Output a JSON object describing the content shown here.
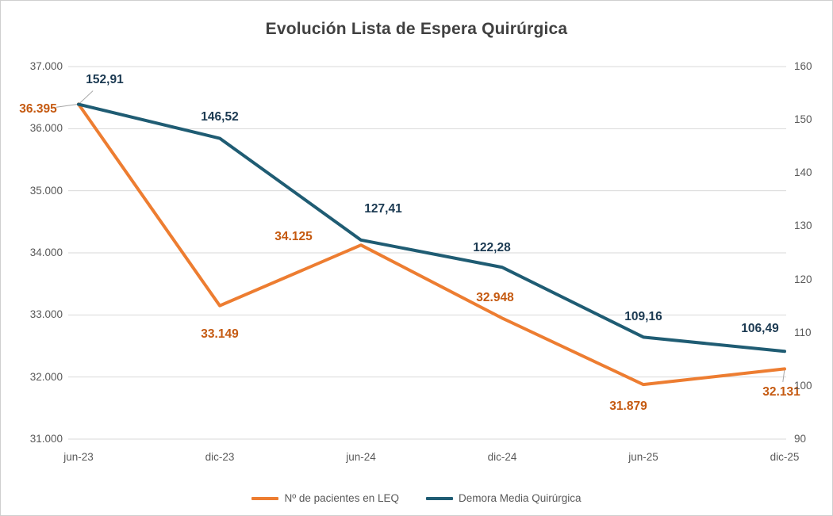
{
  "chart_data": {
    "type": "line",
    "title": "Evolución Lista de Espera Quirúrgica",
    "categories": [
      "jun-23",
      "dic-23",
      "jun-24",
      "dic-24",
      "jun-25",
      "dic-25"
    ],
    "series": [
      {
        "name": "Nº de pacientes en LEQ",
        "axis": "left",
        "color": "#ED7D31",
        "label_color": "#C55A11",
        "values": [
          36395,
          33149,
          34125,
          32948,
          31879,
          32131
        ],
        "labels": [
          "36.395",
          "33.149",
          "34.125",
          "32.948",
          "31.879",
          "32.131"
        ]
      },
      {
        "name": "Demora Media Quirúrgica",
        "axis": "right",
        "color": "#1F5C73",
        "label_color": "#1C3A52",
        "values": [
          152.91,
          146.52,
          127.41,
          122.28,
          109.16,
          106.49
        ],
        "labels": [
          "152,91",
          "146,52",
          "127,41",
          "122,28",
          "109,16",
          "106,49"
        ]
      }
    ],
    "left_axis": {
      "range": [
        31000,
        37000
      ],
      "ticks": [
        "37.000",
        "36.000",
        "35.000",
        "34.000",
        "33.000",
        "32.000",
        "31.000"
      ]
    },
    "right_axis": {
      "range": [
        90,
        160
      ],
      "ticks": [
        "160",
        "150",
        "140",
        "130",
        "120",
        "110",
        "100",
        "90"
      ]
    },
    "grid": "horizontal",
    "legend_position": "bottom",
    "gridline_color": "#d9d9d9",
    "leader_color": "#a6a6a6"
  }
}
